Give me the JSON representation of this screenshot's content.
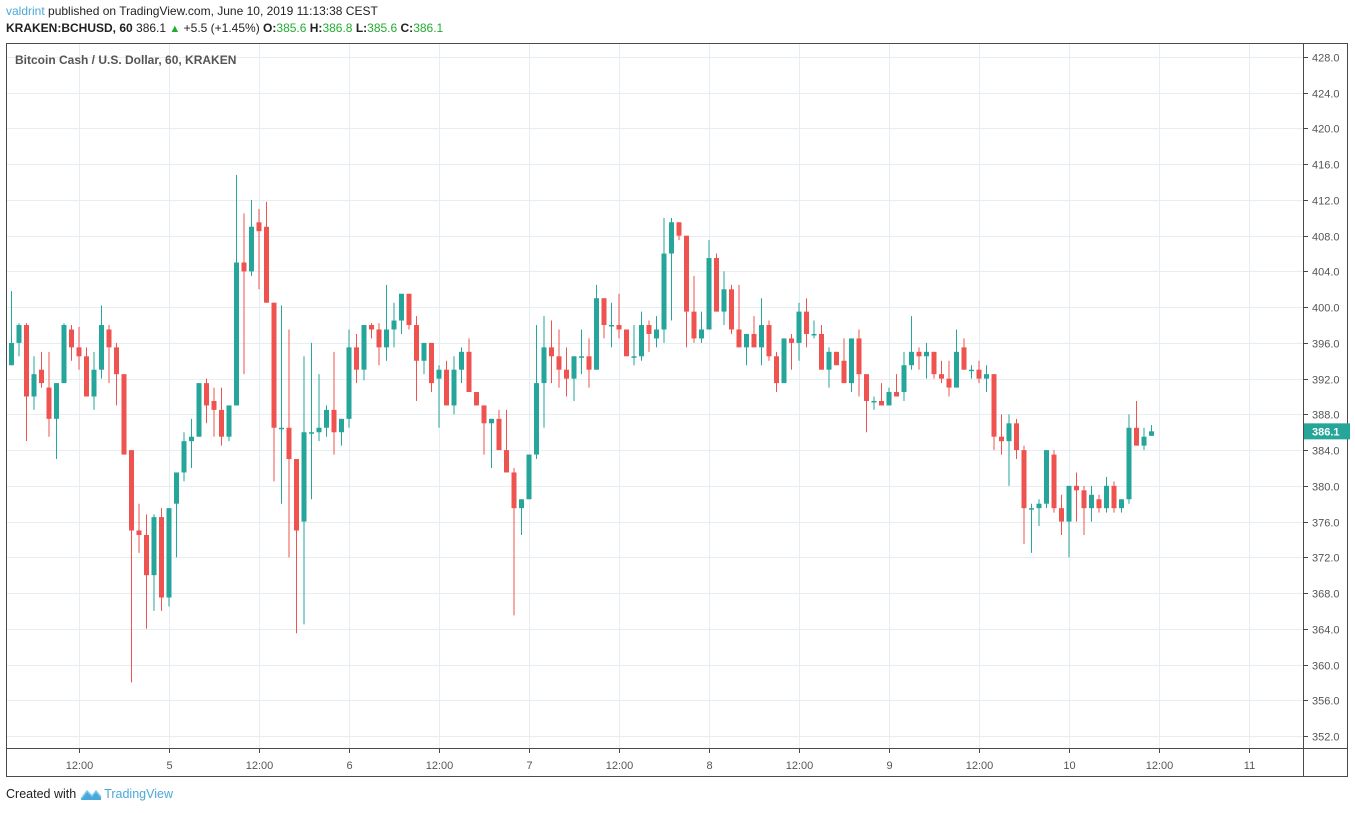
{
  "header": {
    "publisher": "valdrint",
    "published_text": "published on TradingView.com, June 10, 2019 11:13:38 CEST",
    "symbol": "KRAKEN:BCHUSD, 60",
    "last": "386.1",
    "change": "+5.5 (+1.45%)",
    "o_label": "O:",
    "o": "385.6",
    "h_label": "H:",
    "h": "386.8",
    "l_label": "L:",
    "l": "385.6",
    "c_label": "C:",
    "c": "386.1"
  },
  "footer": {
    "created_with": "Created with",
    "brand": "TradingView"
  },
  "colors": {
    "up": "#26a69a",
    "down": "#ef5350",
    "grid": "#e6eef4",
    "axis": "#4a4a4a",
    "accent": "#4aa8d8",
    "price_label_bg": "#26a69a"
  },
  "chart_data": {
    "type": "candlestick",
    "title": "Bitcoin Cash / U.S. Dollar, 60, KRAKEN",
    "xlabel": "",
    "ylabel": "",
    "ylim": [
      350,
      430
    ],
    "y_ticks": [
      428.0,
      424.0,
      420.0,
      416.0,
      412.0,
      408.0,
      404.0,
      400.0,
      396.0,
      392.0,
      388.0,
      384.0,
      380.0,
      376.0,
      372.0,
      368.0,
      364.0,
      360.0,
      356.0,
      352.0
    ],
    "x_ticks": [
      {
        "label": "12:00",
        "hour": 12
      },
      {
        "label": "5",
        "hour": 24
      },
      {
        "label": "12:00",
        "hour": 36
      },
      {
        "label": "6",
        "hour": 48
      },
      {
        "label": "12:00",
        "hour": 60
      },
      {
        "label": "7",
        "hour": 72
      },
      {
        "label": "12:00",
        "hour": 84
      },
      {
        "label": "8",
        "hour": 96
      },
      {
        "label": "12:00",
        "hour": 108
      },
      {
        "label": "9",
        "hour": 120
      },
      {
        "label": "12:00",
        "hour": 132
      },
      {
        "label": "10",
        "hour": 144
      },
      {
        "label": "12:00",
        "hour": 156
      },
      {
        "label": "11",
        "hour": 168
      }
    ],
    "grid": true,
    "current_price": 386.1,
    "interval": "60 min",
    "x_start_hour": 3,
    "candles": [
      [
        393.5,
        401.8,
        393.5,
        396.0
      ],
      [
        396.0,
        398.2,
        394.5,
        398.0
      ],
      [
        398.0,
        398.2,
        385.0,
        390.0
      ],
      [
        390.0,
        394.5,
        388.5,
        392.5
      ],
      [
        393.0,
        395.0,
        391.0,
        391.5
      ],
      [
        391.0,
        395.0,
        385.5,
        387.5
      ],
      [
        387.5,
        389.5,
        383.0,
        391.5
      ],
      [
        391.5,
        398.2,
        391.5,
        398.0
      ],
      [
        397.5,
        398.0,
        394.0,
        395.5
      ],
      [
        395.5,
        397.8,
        393.0,
        394.5
      ],
      [
        394.5,
        395.5,
        390.0,
        390.0
      ],
      [
        390.0,
        395.0,
        388.5,
        393.0
      ],
      [
        393.0,
        400.2,
        392.0,
        398.0
      ],
      [
        397.5,
        398.0,
        391.5,
        395.5
      ],
      [
        395.5,
        396.0,
        389.0,
        392.5
      ],
      [
        392.5,
        392.5,
        384.0,
        383.5
      ],
      [
        384.0,
        384.0,
        358.0,
        375.0
      ],
      [
        375.0,
        378.0,
        372.5,
        374.5
      ],
      [
        374.5,
        376.8,
        364.0,
        370.0
      ],
      [
        370.0,
        376.8,
        366.0,
        376.5
      ],
      [
        376.5,
        377.5,
        366.0,
        367.5
      ],
      [
        367.5,
        377.0,
        366.5,
        377.5
      ],
      [
        378.0,
        380.0,
        372.0,
        381.5
      ],
      [
        381.5,
        386.0,
        380.5,
        385.0
      ],
      [
        385.0,
        387.5,
        382.0,
        385.5
      ],
      [
        385.5,
        390.5,
        385.5,
        391.5
      ],
      [
        391.5,
        392.0,
        387.0,
        389.0
      ],
      [
        389.5,
        391.0,
        385.5,
        388.5
      ],
      [
        388.5,
        391.0,
        384.5,
        385.5
      ],
      [
        385.5,
        389.0,
        385.0,
        389.0
      ],
      [
        389.0,
        414.8,
        389.0,
        405.0
      ],
      [
        405.0,
        410.5,
        392.5,
        404.0
      ],
      [
        404.0,
        412.0,
        403.5,
        409.0
      ],
      [
        409.5,
        411.0,
        402.0,
        408.5
      ],
      [
        409.0,
        411.8,
        400.5,
        400.5
      ],
      [
        400.5,
        400.5,
        380.5,
        386.5
      ],
      [
        386.5,
        400.2,
        378.0,
        386.5
      ],
      [
        386.5,
        397.5,
        372.0,
        383.0
      ],
      [
        383.0,
        383.0,
        363.5,
        375.0
      ],
      [
        376.0,
        394.5,
        364.5,
        386.0
      ],
      [
        386.0,
        396.0,
        378.5,
        386.0
      ],
      [
        386.0,
        392.5,
        385.0,
        386.5
      ],
      [
        386.5,
        389.0,
        385.5,
        388.5
      ],
      [
        388.5,
        395.0,
        383.5,
        386.0
      ],
      [
        386.0,
        387.5,
        384.5,
        387.5
      ],
      [
        387.5,
        397.5,
        386.5,
        395.5
      ],
      [
        395.5,
        397.0,
        391.5,
        393.0
      ],
      [
        393.0,
        397.8,
        391.8,
        398.0
      ],
      [
        398.0,
        398.2,
        396.5,
        397.5
      ],
      [
        397.5,
        398.2,
        393.5,
        395.5
      ],
      [
        395.5,
        402.5,
        394.0,
        397.5
      ],
      [
        397.5,
        400.5,
        395.5,
        398.5
      ],
      [
        398.5,
        401.5,
        397.0,
        401.5
      ],
      [
        401.5,
        401.5,
        397.5,
        398.0
      ],
      [
        398.0,
        399.0,
        389.5,
        394.0
      ],
      [
        394.0,
        395.0,
        392.5,
        396.0
      ],
      [
        396.0,
        396.0,
        390.5,
        391.5
      ],
      [
        392.0,
        393.5,
        386.5,
        393.0
      ],
      [
        393.0,
        394.0,
        389.0,
        389.0
      ],
      [
        389.0,
        394.5,
        388.0,
        393.0
      ],
      [
        393.0,
        395.5,
        391.5,
        395.0
      ],
      [
        395.0,
        396.5,
        390.5,
        390.5
      ],
      [
        390.5,
        390.0,
        389.0,
        389.0
      ],
      [
        389.0,
        388.5,
        383.5,
        387.0
      ],
      [
        387.0,
        387.5,
        382.0,
        387.5
      ],
      [
        387.5,
        388.5,
        384.0,
        384.0
      ],
      [
        384.0,
        388.5,
        381.5,
        381.5
      ],
      [
        381.5,
        382.0,
        365.5,
        377.5
      ],
      [
        377.5,
        378.5,
        374.5,
        378.5
      ],
      [
        378.5,
        383.5,
        378.5,
        383.5
      ],
      [
        383.5,
        398.0,
        383.0,
        391.5
      ],
      [
        391.5,
        399.0,
        386.5,
        395.5
      ],
      [
        395.5,
        398.5,
        391.5,
        394.5
      ],
      [
        394.5,
        397.5,
        391.0,
        393.0
      ],
      [
        393.0,
        395.5,
        390.0,
        392.0
      ],
      [
        392.0,
        394.0,
        389.5,
        394.5
      ],
      [
        394.5,
        397.5,
        392.5,
        394.5
      ],
      [
        394.5,
        396.5,
        391.0,
        393.0
      ],
      [
        393.0,
        402.5,
        393.0,
        401.0
      ],
      [
        401.0,
        400.5,
        396.5,
        398.0
      ],
      [
        398.0,
        400.5,
        395.5,
        398.0
      ],
      [
        398.0,
        401.5,
        396.5,
        397.5
      ],
      [
        397.5,
        397.5,
        395.0,
        394.5
      ],
      [
        394.5,
        398.0,
        393.5,
        394.5
      ],
      [
        394.5,
        399.5,
        394.0,
        398.0
      ],
      [
        398.0,
        398.5,
        395.0,
        397.0
      ],
      [
        396.5,
        399.0,
        395.5,
        397.5
      ],
      [
        397.5,
        410.0,
        396.0,
        406.0
      ],
      [
        406.0,
        410.0,
        398.5,
        409.5
      ],
      [
        409.5,
        409.5,
        407.5,
        408.0
      ],
      [
        408.0,
        407.0,
        395.5,
        399.5
      ],
      [
        399.5,
        403.5,
        396.0,
        396.5
      ],
      [
        396.5,
        399.5,
        396.0,
        397.5
      ],
      [
        397.5,
        407.5,
        397.5,
        405.5
      ],
      [
        405.5,
        406.0,
        399.5,
        399.5
      ],
      [
        399.5,
        404.0,
        398.0,
        402.0
      ],
      [
        402.0,
        402.5,
        397.0,
        397.5
      ],
      [
        397.5,
        402.5,
        397.0,
        395.5
      ],
      [
        395.5,
        397.0,
        393.5,
        397.0
      ],
      [
        397.0,
        399.0,
        396.0,
        395.5
      ],
      [
        395.5,
        401.0,
        393.5,
        398.0
      ],
      [
        398.0,
        398.5,
        394.0,
        394.5
      ],
      [
        394.5,
        395.0,
        390.5,
        391.5
      ],
      [
        391.5,
        395.5,
        392.5,
        396.5
      ],
      [
        396.5,
        397.0,
        393.0,
        396.0
      ],
      [
        396.0,
        400.5,
        394.0,
        399.5
      ],
      [
        399.5,
        401.0,
        395.5,
        397.0
      ],
      [
        397.0,
        398.5,
        396.5,
        397.0
      ],
      [
        397.0,
        398.0,
        393.5,
        393.0
      ],
      [
        393.0,
        395.5,
        391.0,
        395.0
      ],
      [
        395.0,
        394.5,
        393.5,
        393.5
      ],
      [
        394.0,
        396.5,
        391.5,
        391.5
      ],
      [
        391.5,
        396.0,
        390.5,
        396.5
      ],
      [
        396.5,
        397.5,
        390.0,
        392.5
      ],
      [
        392.5,
        392.5,
        386.0,
        389.5
      ],
      [
        389.5,
        390.0,
        388.5,
        389.5
      ],
      [
        389.5,
        391.5,
        390.0,
        389.0
      ],
      [
        389.0,
        391.0,
        389.0,
        390.5
      ],
      [
        390.5,
        392.5,
        390.0,
        390.0
      ],
      [
        390.5,
        395.0,
        389.5,
        393.5
      ],
      [
        393.5,
        399.0,
        393.0,
        395.0
      ],
      [
        395.0,
        395.5,
        393.0,
        394.5
      ],
      [
        394.5,
        396.0,
        392.0,
        395.0
      ],
      [
        395.0,
        394.5,
        392.0,
        392.5
      ],
      [
        392.5,
        394.0,
        391.5,
        392.0
      ],
      [
        392.0,
        394.0,
        390.0,
        391.0
      ],
      [
        391.0,
        397.5,
        391.0,
        395.0
      ],
      [
        395.5,
        396.5,
        393.0,
        393.0
      ],
      [
        393.0,
        393.5,
        392.0,
        393.0
      ],
      [
        393.0,
        394.0,
        391.5,
        392.0
      ],
      [
        392.0,
        393.5,
        390.5,
        392.5
      ],
      [
        392.5,
        392.5,
        384.0,
        385.5
      ],
      [
        385.5,
        388.0,
        383.5,
        385.0
      ],
      [
        385.0,
        388.0,
        380.0,
        387.0
      ],
      [
        387.0,
        387.5,
        383.0,
        384.0
      ],
      [
        384.0,
        384.5,
        373.5,
        377.5
      ],
      [
        377.5,
        378.0,
        372.5,
        377.5
      ],
      [
        377.5,
        378.5,
        375.5,
        378.0
      ],
      [
        378.0,
        383.5,
        377.5,
        384.0
      ],
      [
        383.5,
        384.0,
        377.0,
        377.5
      ],
      [
        377.5,
        379.0,
        374.5,
        376.0
      ],
      [
        376.0,
        379.0,
        372.0,
        380.0
      ],
      [
        380.0,
        381.5,
        376.0,
        379.5
      ],
      [
        379.5,
        380.0,
        374.5,
        377.5
      ],
      [
        377.5,
        380.0,
        376.0,
        379.0
      ],
      [
        378.5,
        379.0,
        377.0,
        377.5
      ],
      [
        377.5,
        381.0,
        377.0,
        380.0
      ],
      [
        380.0,
        380.5,
        377.0,
        377.5
      ],
      [
        377.5,
        378.5,
        377.0,
        378.5
      ],
      [
        378.5,
        388.0,
        378.0,
        386.5
      ],
      [
        386.5,
        389.5,
        384.5,
        384.5
      ],
      [
        384.5,
        386.5,
        384.0,
        385.5
      ],
      [
        385.6,
        386.8,
        385.6,
        386.1
      ]
    ]
  }
}
